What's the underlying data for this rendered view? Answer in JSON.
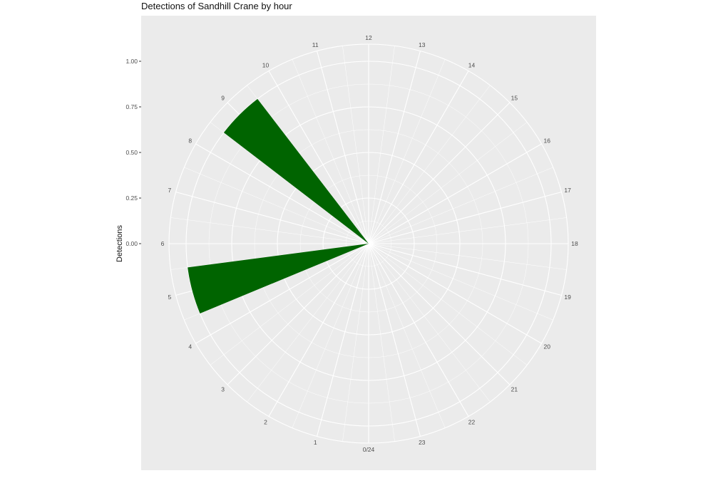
{
  "chart_data": {
    "type": "bar",
    "coord": "polar",
    "title": "Detections of Sandhill Crane by hour",
    "xlabel": "",
    "ylabel": "Detections",
    "categories": [
      "0/24",
      "1",
      "2",
      "3",
      "4",
      "5",
      "6",
      "7",
      "8",
      "9",
      "10",
      "11",
      "12",
      "13",
      "14",
      "15",
      "16",
      "17",
      "18",
      "19",
      "20",
      "21",
      "22",
      "23"
    ],
    "values": [
      0,
      0,
      0,
      0,
      0,
      1,
      0,
      0,
      0,
      1,
      0,
      0,
      0,
      0,
      0,
      0,
      0,
      0,
      0,
      0,
      0,
      0,
      0,
      0
    ],
    "ylim": [
      0,
      1.0
    ],
    "y_ticks": [
      "0.00",
      "0.25",
      "0.50",
      "0.75",
      "1.00"
    ],
    "bar_color": "#006400",
    "panel_color": "#ebebeb",
    "grid": true
  }
}
